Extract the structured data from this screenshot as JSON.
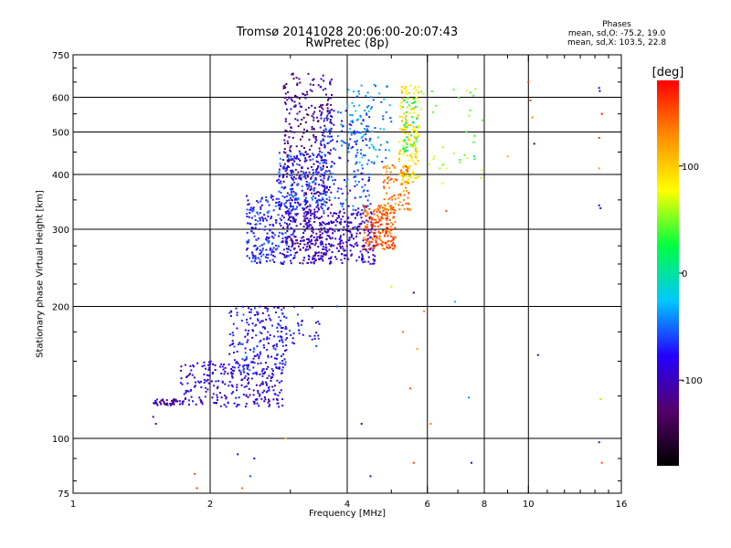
{
  "title_line1": "Tromsø 20141028 20:06:00-20:07:43",
  "title_line2": "RwPretec (8p)",
  "phase_box": {
    "heading": "Phases",
    "line_o": "mean, sd,O: -75.2, 19.0",
    "line_x": "mean, sd,X: 103.5, 22.8"
  },
  "colorbar": {
    "unit_label": "[deg]",
    "range": [
      -180,
      180
    ],
    "ticks": [
      100,
      0,
      -100
    ],
    "colors": [
      "#000000",
      "#55006a",
      "#2400ff",
      "#00c8ff",
      "#00ff40",
      "#ffff00",
      "#ff8c00",
      "#ff0000"
    ]
  },
  "chart_data": {
    "type": "scatter",
    "xlabel": "Frequency [MHz]",
    "ylabel": "Stationary phase Virtual Height [km]",
    "x_scale": "log",
    "y_scale": "log",
    "xlim": [
      1,
      16
    ],
    "ylim": [
      75,
      750
    ],
    "x_ticks": [
      1,
      2,
      4,
      6,
      8,
      10,
      16
    ],
    "y_ticks": [
      75,
      100,
      200,
      300,
      400,
      500,
      600,
      750
    ],
    "x_grid": [
      2,
      4,
      6,
      8,
      10
    ],
    "y_grid": [
      100,
      200,
      300,
      400,
      500,
      600
    ],
    "grid": true,
    "color_by": "phase (deg)",
    "clusters": [
      {
        "f": [
          1.5,
          1.72
        ],
        "h": [
          119,
          123
        ],
        "phase": -110,
        "n": 40
      },
      {
        "f": [
          1.72,
          2.9
        ],
        "h": [
          118,
          150
        ],
        "phase": -90,
        "n": 260
      },
      {
        "f": [
          2.2,
          2.95
        ],
        "h": [
          140,
          200
        ],
        "phase": -75,
        "n": 180
      },
      {
        "f": [
          2.6,
          3.5
        ],
        "h": [
          160,
          200
        ],
        "phase": -80,
        "n": 50
      },
      {
        "f": [
          2.4,
          3.1
        ],
        "h": [
          250,
          360
        ],
        "phase": -70,
        "n": 280
      },
      {
        "f": [
          2.9,
          3.7
        ],
        "h": [
          250,
          680
        ],
        "phase": -115,
        "n": 420
      },
      {
        "f": [
          3.2,
          4.6
        ],
        "h": [
          250,
          330
        ],
        "phase": -95,
        "n": 320
      },
      {
        "f": [
          2.8,
          3.6
        ],
        "h": [
          330,
          450
        ],
        "phase": -65,
        "n": 200
      },
      {
        "f": [
          3.5,
          4.5
        ],
        "h": [
          330,
          560
        ],
        "phase": -60,
        "n": 180
      },
      {
        "f": [
          4.0,
          5.0
        ],
        "h": [
          420,
          650
        ],
        "phase": -40,
        "n": 90
      },
      {
        "f": [
          4.35,
          5.1
        ],
        "h": [
          270,
          340
        ],
        "phase": 150,
        "n": 200
      },
      {
        "f": [
          4.8,
          5.5
        ],
        "h": [
          330,
          420
        ],
        "phase": 135,
        "n": 90
      },
      {
        "f": [
          5.2,
          5.75
        ],
        "h": [
          380,
          640
        ],
        "phase": 90,
        "n": 160
      },
      {
        "f": [
          5.3,
          5.7
        ],
        "h": [
          450,
          600
        ],
        "phase": 20,
        "n": 40
      },
      {
        "f": [
          5.8,
          8.0
        ],
        "h": [
          380,
          640
        ],
        "phase": 60,
        "n": 35
      }
    ],
    "points": [
      {
        "f": 1.5,
        "h": 112,
        "phase": -110
      },
      {
        "f": 1.52,
        "h": 108,
        "phase": -120
      },
      {
        "f": 1.85,
        "h": 83,
        "phase": 150
      },
      {
        "f": 1.87,
        "h": 77,
        "phase": 160
      },
      {
        "f": 2.3,
        "h": 92,
        "phase": -110
      },
      {
        "f": 2.35,
        "h": 77,
        "phase": 140
      },
      {
        "f": 2.45,
        "h": 82,
        "phase": -60
      },
      {
        "f": 2.5,
        "h": 90,
        "phase": -80
      },
      {
        "f": 2.93,
        "h": 100,
        "phase": 100
      },
      {
        "f": 3.8,
        "h": 200,
        "phase": -60
      },
      {
        "f": 4.3,
        "h": 108,
        "phase": -110
      },
      {
        "f": 4.5,
        "h": 82,
        "phase": -110
      },
      {
        "f": 5.0,
        "h": 222,
        "phase": 90
      },
      {
        "f": 5.3,
        "h": 175,
        "phase": 140
      },
      {
        "f": 5.5,
        "h": 130,
        "phase": 150
      },
      {
        "f": 5.6,
        "h": 88,
        "phase": 160
      },
      {
        "f": 5.6,
        "h": 215,
        "phase": -120
      },
      {
        "f": 5.7,
        "h": 160,
        "phase": 120
      },
      {
        "f": 5.9,
        "h": 195,
        "phase": 130
      },
      {
        "f": 6.1,
        "h": 108,
        "phase": 130
      },
      {
        "f": 6.6,
        "h": 330,
        "phase": 150
      },
      {
        "f": 6.9,
        "h": 205,
        "phase": -30
      },
      {
        "f": 7.4,
        "h": 124,
        "phase": -40
      },
      {
        "f": 7.5,
        "h": 88,
        "phase": -120
      },
      {
        "f": 7.6,
        "h": 440,
        "phase": -20
      },
      {
        "f": 9.0,
        "h": 440,
        "phase": 110
      },
      {
        "f": 10.0,
        "h": 650,
        "phase": 160
      },
      {
        "f": 10.1,
        "h": 590,
        "phase": 150
      },
      {
        "f": 10.2,
        "h": 540,
        "phase": 130
      },
      {
        "f": 10.3,
        "h": 470,
        "phase": -140
      },
      {
        "f": 10.5,
        "h": 155,
        "phase": -110
      },
      {
        "f": 14.3,
        "h": 630,
        "phase": -110
      },
      {
        "f": 14.35,
        "h": 620,
        "phase": -100
      },
      {
        "f": 14.3,
        "h": 340,
        "phase": -90
      },
      {
        "f": 14.4,
        "h": 335,
        "phase": -80
      },
      {
        "f": 14.5,
        "h": 550,
        "phase": 170
      },
      {
        "f": 14.3,
        "h": 485,
        "phase": 160
      },
      {
        "f": 14.4,
        "h": 123,
        "phase": 60
      },
      {
        "f": 14.3,
        "h": 98,
        "phase": -70
      },
      {
        "f": 14.5,
        "h": 88,
        "phase": 150
      },
      {
        "f": 14.3,
        "h": 413,
        "phase": 120
      }
    ]
  }
}
